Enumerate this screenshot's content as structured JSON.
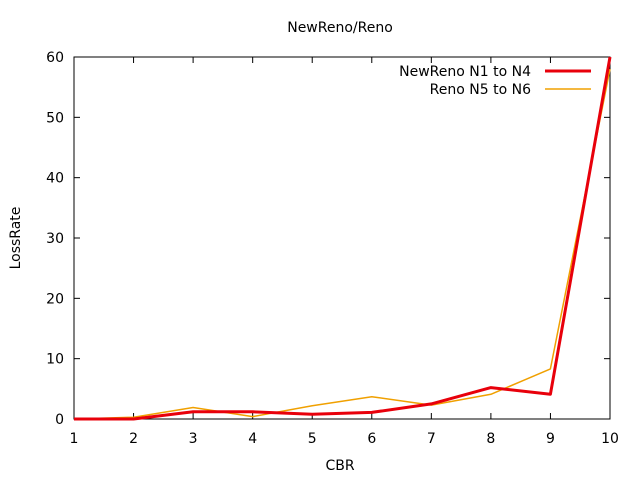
{
  "chart_data": {
    "type": "line",
    "title": "NewReno/Reno",
    "xlabel": "CBR",
    "ylabel": "LossRate",
    "xlim": [
      1,
      10
    ],
    "ylim": [
      0,
      60
    ],
    "x_ticks": [
      "1",
      "2",
      "3",
      "4",
      "5",
      "6",
      "7",
      "8",
      "9",
      "10"
    ],
    "y_ticks": [
      "0",
      "10",
      "20",
      "30",
      "40",
      "50",
      "60"
    ],
    "grid": false,
    "legend_position": "top-right",
    "x": [
      1,
      2,
      3,
      4,
      5,
      6,
      7,
      8,
      9,
      10
    ],
    "series": [
      {
        "name": "NewReno N1 to N4",
        "color": "#e8000b",
        "values": [
          0,
          0,
          1.2,
          1.2,
          0.8,
          1.1,
          2.5,
          5.2,
          4.1,
          60
        ]
      },
      {
        "name": "Reno N5 to N6",
        "color": "#f0a000",
        "values": [
          0,
          0.3,
          1.9,
          0.4,
          2.2,
          3.7,
          2.3,
          4.1,
          8.3,
          58
        ]
      }
    ]
  }
}
